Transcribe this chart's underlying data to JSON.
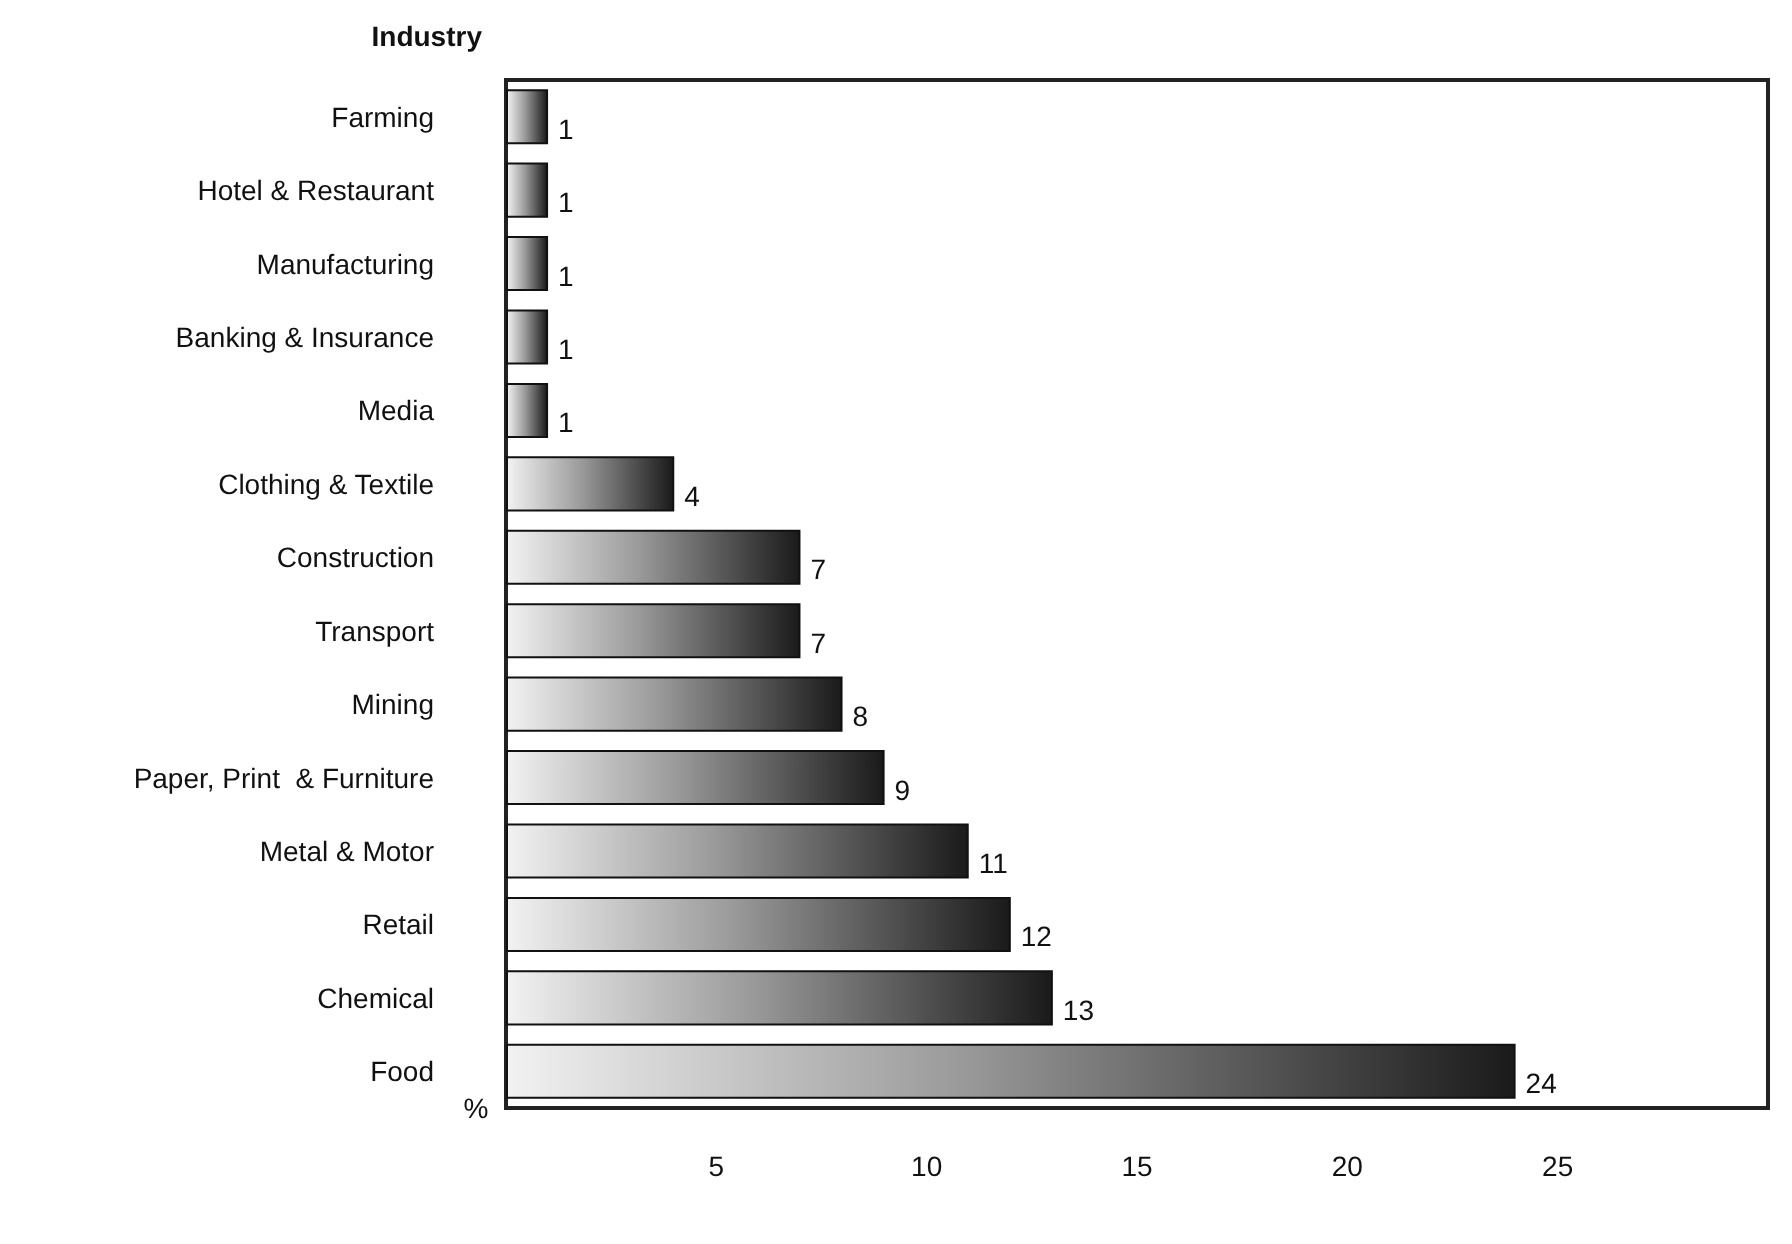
{
  "chart_data": {
    "type": "bar",
    "orientation": "horizontal",
    "ylabel": "Industry",
    "xlabel": "%",
    "categories": [
      "Farming",
      "Hotel & Restaurant",
      "Manufacturing",
      "Banking & Insurance",
      "Media",
      "Clothing & Textile",
      "Construction",
      "Transport",
      "Mining",
      "Paper, Print  & Furniture",
      "Metal & Motor",
      "Retail",
      "Chemical",
      "Food"
    ],
    "values": [
      1,
      1,
      1,
      1,
      1,
      4,
      7,
      7,
      8,
      9,
      11,
      12,
      13,
      24
    ],
    "color": "#1a1a1a",
    "xlim": [
      0,
      30
    ],
    "xticks": [
      5,
      10,
      15,
      20,
      25
    ],
    "data_labels": true,
    "grid": false
  }
}
